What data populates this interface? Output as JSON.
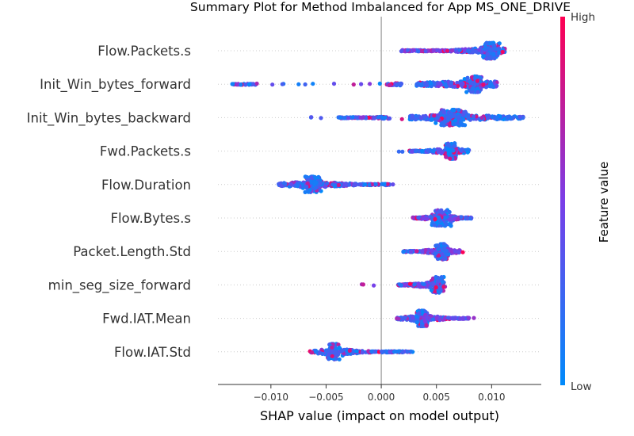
{
  "chart_data": {
    "type": "scatter",
    "title": "Summary Plot for Method Imbalanced for App MS_ONE_DRIVE",
    "xlabel": "SHAP value (impact on model output)",
    "xlim": [
      -0.0148,
      0.0145
    ],
    "xticks": [
      {
        "value": -0.01,
        "label": "−0.010"
      },
      {
        "value": -0.005,
        "label": "−0.005"
      },
      {
        "value": 0.0,
        "label": "0.000"
      },
      {
        "value": 0.005,
        "label": "0.005"
      },
      {
        "value": 0.01,
        "label": "0.010"
      }
    ],
    "colorbar": {
      "title": "Feature value",
      "high_label": "High",
      "low_label": "Low",
      "low_color": "#008bfb",
      "high_color": "#ff0052"
    },
    "features": [
      {
        "name": "Flow.Packets.s",
        "min": 0.001,
        "max": 0.0112,
        "mode": 0.0099,
        "mode_spread": 0.00035,
        "core": [
          0.0018,
          0.0112
        ],
        "high_side": "low",
        "points": 420
      },
      {
        "name": "Init_Win_bytes_forward",
        "min": -0.0137,
        "max": 0.0105,
        "mode": 0.0085,
        "mode_spread": 0.0003,
        "core": [
          0.0032,
          0.0105
        ],
        "extra_clusters": [
          {
            "center": -0.0125,
            "spread": 0.0011
          },
          {
            "center": 0.0012,
            "spread": 0.0007
          }
        ],
        "high_side": "mid",
        "points": 400
      },
      {
        "name": "Init_Win_bytes_backward",
        "min": -0.0074,
        "max": 0.0129,
        "mode": 0.0065,
        "mode_spread": 0.0006,
        "core": [
          0.0025,
          0.0129
        ],
        "extra_clusters": [
          {
            "center": -0.0015,
            "spread": 0.0024
          }
        ],
        "high_side": "mid",
        "points": 480
      },
      {
        "name": "Fwd.Packets.s",
        "min": 0.0015,
        "max": 0.0082,
        "mode": 0.0063,
        "mode_spread": 0.00025,
        "core": [
          0.0025,
          0.008
        ],
        "high_side": "mid",
        "points": 260
      },
      {
        "name": "Flow.Duration",
        "min": -0.0093,
        "max": 0.002,
        "mode": -0.0062,
        "mode_spread": 0.00035,
        "core": [
          -0.0093,
          0.0008
        ],
        "high_side": "mid",
        "points": 380
      },
      {
        "name": "Flow.Bytes.s",
        "min": 0.0026,
        "max": 0.0082,
        "mode": 0.0054,
        "mode_spread": 0.0004,
        "core": [
          0.0028,
          0.0082
        ],
        "high_side": "low",
        "points": 300
      },
      {
        "name": "Packet.Length.Std",
        "min": 0.0018,
        "max": 0.0074,
        "mode": 0.0055,
        "mode_spread": 0.00025,
        "core": [
          0.002,
          0.0072
        ],
        "high_side": "high",
        "points": 280
      },
      {
        "name": "min_seg_size_forward",
        "min": -0.0025,
        "max": 0.006,
        "mode": 0.0052,
        "mode_spread": 0.00025,
        "core": [
          0.0015,
          0.0058
        ],
        "high_side": "low",
        "points": 260
      },
      {
        "name": "Fwd.IAT.Mean",
        "min": 0.0013,
        "max": 0.0085,
        "mode": 0.0037,
        "mode_spread": 0.00025,
        "core": [
          0.0013,
          0.008
        ],
        "high_side": "high",
        "points": 300
      },
      {
        "name": "Flow.IAT.Std",
        "min": -0.0065,
        "max": 0.0029,
        "mode": -0.0044,
        "mode_spread": 0.00025,
        "core": [
          -0.0065,
          0.0029
        ],
        "extra_clusters": [
          {
            "center": -0.003,
            "spread": 0.0004
          }
        ],
        "high_side": "mid",
        "points": 330
      }
    ]
  }
}
